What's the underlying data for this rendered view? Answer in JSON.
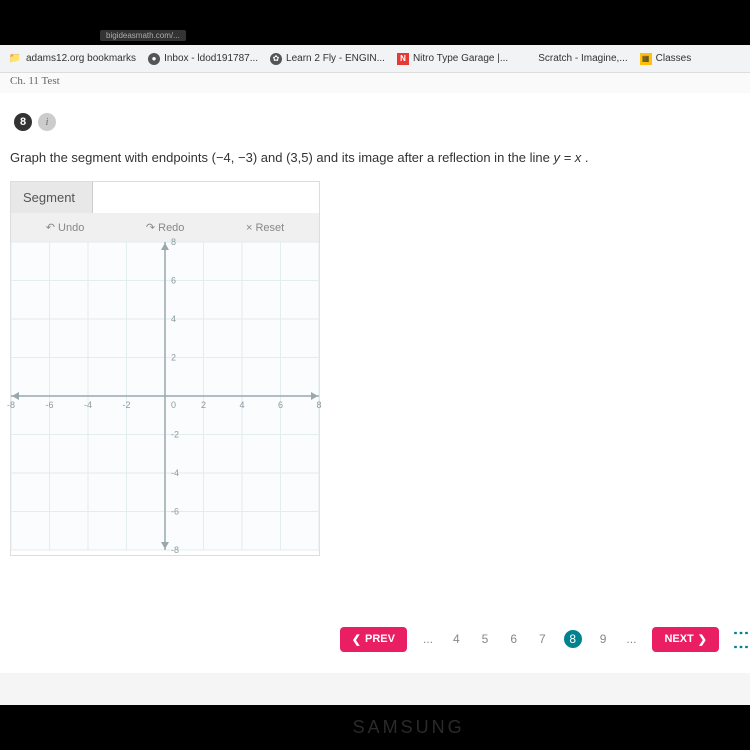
{
  "url_hint": "bigideasmath.com/...",
  "bookmarks": [
    {
      "label": "adams12.org bookmarks",
      "icon": "📁",
      "iconClass": "folder-icon"
    },
    {
      "label": "Inbox - ldod191787...",
      "icon": "●",
      "iconClass": "globe-icon"
    },
    {
      "label": "Learn 2 Fly - ENGIN...",
      "icon": "✿",
      "iconClass": "globe-icon"
    },
    {
      "label": "Nitro Type Garage |...",
      "icon": "N",
      "iconClass": "n-icon"
    },
    {
      "label": "Scratch - Imagine,...",
      "icon": "",
      "iconClass": "scratch-icon"
    },
    {
      "label": "Classes",
      "icon": "▦",
      "iconClass": "classes-icon"
    }
  ],
  "breadcrumb": "Ch. 11 Test",
  "question": {
    "number": "8",
    "info": "i",
    "prompt_before": "Graph the segment with endpoints ",
    "point1": "(−4, −3)",
    "prompt_mid": " and ",
    "point2": "(3,5)",
    "prompt_after": " and its image after a reflection in the line ",
    "equation": "y = x",
    "prompt_end": " ."
  },
  "widget": {
    "tab": "Segment",
    "undo": "Undo",
    "redo": "Redo",
    "reset": "Reset"
  },
  "graph": {
    "size": 308,
    "min": -8,
    "max": 8,
    "step": 2,
    "ticks": [
      -8,
      -6,
      -4,
      -2,
      0,
      2,
      4,
      6,
      8
    ],
    "gridColor": "#e3ecef",
    "axisColor": "#9aa8ad",
    "labelColor": "#8a9a9f"
  },
  "pagination": {
    "prev": "PREV",
    "next": "NEXT",
    "ellipsis": "...",
    "pages": [
      "4",
      "5",
      "6",
      "7",
      "8",
      "9"
    ],
    "active": "8"
  },
  "brand": "SAMSUNG"
}
